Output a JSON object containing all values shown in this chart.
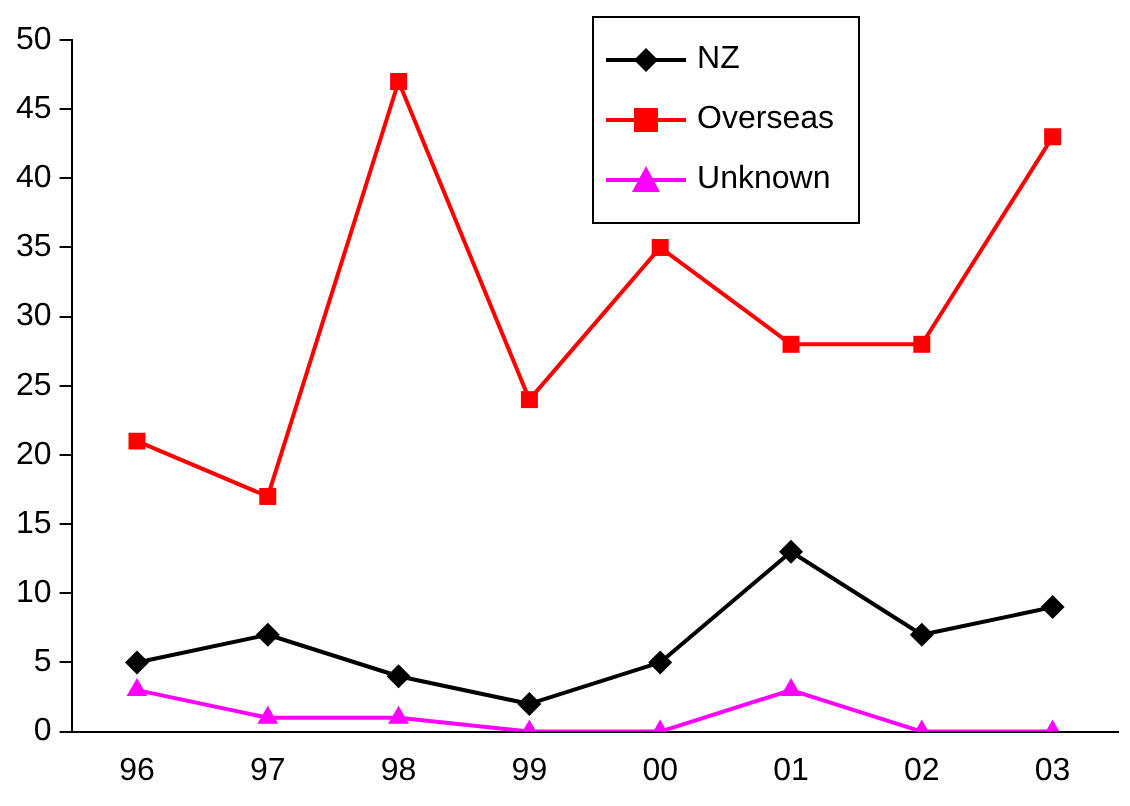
{
  "chart_data": {
    "type": "line",
    "categories": [
      "96",
      "97",
      "98",
      "99",
      "00",
      "01",
      "02",
      "03"
    ],
    "series": [
      {
        "name": "NZ",
        "color": "#000000",
        "marker": "diamond",
        "values": [
          5,
          7,
          4,
          2,
          5,
          13,
          7,
          9
        ]
      },
      {
        "name": "Overseas",
        "color": "#ff0000",
        "marker": "square",
        "values": [
          21,
          17,
          47,
          24,
          35,
          28,
          28,
          43
        ]
      },
      {
        "name": "Unknown",
        "color": "#ff00ff",
        "marker": "triangle",
        "values": [
          3,
          1,
          1,
          0,
          0,
          3,
          0,
          0
        ]
      }
    ],
    "ylim": [
      0,
      50
    ],
    "yticks": [
      0,
      5,
      10,
      15,
      20,
      25,
      30,
      35,
      40,
      45,
      50
    ],
    "grid": false,
    "legend": "top right",
    "line_style": "solid"
  }
}
